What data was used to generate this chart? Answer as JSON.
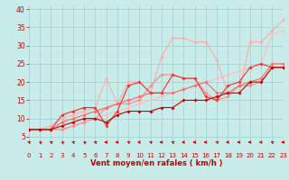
{
  "xlabel": "Vent moyen/en rafales ( km/h )",
  "xlim": [
    0,
    23
  ],
  "ylim": [
    4,
    41
  ],
  "yticks": [
    5,
    10,
    15,
    20,
    25,
    30,
    35,
    40
  ],
  "xticks": [
    0,
    1,
    2,
    3,
    4,
    5,
    6,
    7,
    8,
    9,
    10,
    11,
    12,
    13,
    14,
    15,
    16,
    17,
    18,
    19,
    20,
    21,
    22,
    23
  ],
  "bg_color": "#c8ecea",
  "grid_color": "#a8d4d2",
  "series": [
    {
      "x": [
        0,
        1,
        2,
        3,
        4,
        5,
        6,
        7,
        8,
        9,
        10,
        11,
        12,
        13,
        14,
        15,
        16,
        17,
        18,
        19,
        20,
        21,
        22,
        23
      ],
      "y": [
        7,
        7,
        7,
        7,
        8,
        9,
        10,
        11,
        12,
        13,
        14,
        15,
        16,
        17,
        18,
        19,
        20,
        21,
        22,
        23,
        24,
        25,
        33,
        34
      ],
      "color": "#ffbbbb",
      "lw": 0.8,
      "ms": 2.0,
      "zorder": 2
    },
    {
      "x": [
        0,
        1,
        2,
        3,
        4,
        5,
        6,
        7,
        8,
        9,
        10,
        11,
        12,
        13,
        14,
        15,
        16,
        17,
        18,
        19,
        20,
        21,
        22,
        23
      ],
      "y": [
        7,
        7,
        8,
        10,
        11,
        12,
        13,
        21,
        14,
        20,
        20,
        17,
        27,
        32,
        32,
        31,
        31,
        26,
        17,
        17,
        31,
        31,
        34,
        37
      ],
      "color": "#ffaaaa",
      "lw": 0.8,
      "ms": 2.0,
      "zorder": 3
    },
    {
      "x": [
        0,
        1,
        2,
        3,
        4,
        5,
        6,
        7,
        8,
        9,
        10,
        11,
        12,
        13,
        14,
        15,
        16,
        17,
        18,
        19,
        20,
        21,
        22,
        23
      ],
      "y": [
        7,
        7,
        7,
        7,
        8,
        9,
        10,
        13,
        14,
        14,
        15,
        19,
        22,
        22,
        21,
        21,
        17,
        15,
        16,
        19,
        19,
        20,
        24,
        24
      ],
      "color": "#ff8888",
      "lw": 0.8,
      "ms": 2.0,
      "zorder": 4
    },
    {
      "x": [
        0,
        1,
        2,
        3,
        4,
        5,
        6,
        7,
        8,
        9,
        10,
        11,
        12,
        13,
        14,
        15,
        16,
        17,
        18,
        19,
        20,
        21,
        22,
        23
      ],
      "y": [
        7,
        7,
        7,
        9,
        10,
        11,
        12,
        13,
        14,
        15,
        16,
        17,
        17,
        17,
        18,
        19,
        20,
        17,
        17,
        19,
        20,
        21,
        25,
        25
      ],
      "color": "#ff6666",
      "lw": 0.8,
      "ms": 2.0,
      "zorder": 5
    },
    {
      "x": [
        0,
        1,
        2,
        3,
        4,
        5,
        6,
        7,
        8,
        9,
        10,
        11,
        12,
        13,
        14,
        15,
        16,
        17,
        18,
        19,
        20,
        21,
        22,
        23
      ],
      "y": [
        7,
        7,
        7,
        11,
        12,
        13,
        13,
        8,
        12,
        19,
        20,
        17,
        17,
        22,
        21,
        21,
        16,
        15,
        19,
        20,
        24,
        25,
        24,
        24
      ],
      "color": "#ee3333",
      "lw": 0.8,
      "ms": 2.0,
      "zorder": 6
    },
    {
      "x": [
        0,
        1,
        2,
        3,
        4,
        5,
        6,
        7,
        8,
        9,
        10,
        11,
        12,
        13,
        14,
        15,
        16,
        17,
        18,
        19,
        20,
        21,
        22,
        23
      ],
      "y": [
        7,
        7,
        7,
        8,
        9,
        10,
        10,
        9,
        11,
        12,
        12,
        12,
        13,
        13,
        15,
        15,
        15,
        16,
        17,
        17,
        20,
        20,
        24,
        24
      ],
      "color": "#cc0000",
      "lw": 0.8,
      "ms": 2.0,
      "zorder": 7
    }
  ],
  "arrow_directions": [
    225,
    210,
    225,
    210,
    225,
    210,
    225,
    270,
    270,
    225,
    270,
    225,
    270,
    225,
    270,
    270,
    270,
    225,
    270,
    270,
    270,
    270,
    225,
    270
  ],
  "xlabel_color": "#cc0000",
  "tick_color": "#cc0000",
  "xlabel_fontsize": 6.0,
  "tick_fontsize": 5.0,
  "ytick_fontsize": 5.5
}
